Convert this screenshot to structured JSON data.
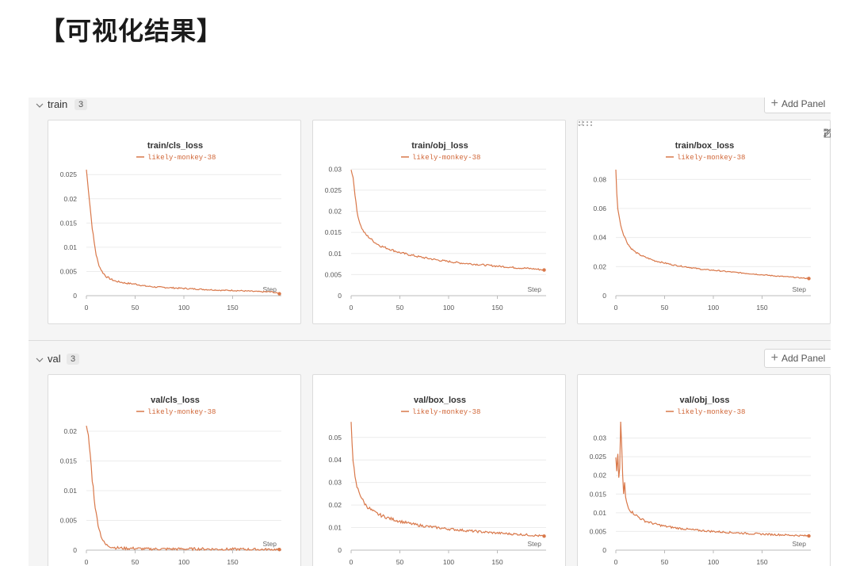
{
  "heading": "【可视化结果】",
  "theme": {
    "line_color": "#d9784a",
    "grid_color": "#ececec"
  },
  "legend_label": "likely-monkey-38",
  "step_label": "Step",
  "sections": [
    {
      "name": "train",
      "count": "3",
      "add_label": "Add Panel",
      "panels": [
        {
          "title": "train/cls_loss",
          "chart_data": {
            "type": "line",
            "title": "train/cls_loss",
            "xlabel": "Step",
            "xlim": [
              0,
              200
            ],
            "ylim": [
              0,
              0.027
            ],
            "xticks": [
              0,
              50,
              100,
              150
            ],
            "yticks": [
              0,
              0.005,
              0.01,
              0.015,
              0.02,
              0.025
            ],
            "ytick_labels": [
              "0",
              "0.005",
              "0.01",
              "0.015",
              "0.02",
              "0.025"
            ],
            "series": [
              {
                "name": "likely-monkey-38",
                "x": [
                  0,
                  2,
                  4,
                  6,
                  8,
                  10,
                  12,
                  14,
                  16,
                  20,
                  25,
                  30,
                  40,
                  50,
                  60,
                  70,
                  80,
                  90,
                  100,
                  110,
                  120,
                  130,
                  140,
                  150,
                  160,
                  170,
                  180,
                  190,
                  198
                ],
                "y": [
                  0.026,
                  0.022,
                  0.018,
                  0.014,
                  0.011,
                  0.0085,
                  0.0068,
                  0.0058,
                  0.005,
                  0.004,
                  0.0034,
                  0.003,
                  0.0026,
                  0.0024,
                  0.002,
                  0.0018,
                  0.0017,
                  0.0016,
                  0.0015,
                  0.0014,
                  0.0013,
                  0.0012,
                  0.0011,
                  0.0011,
                  0.001,
                  0.0009,
                  0.0008,
                  0.0008,
                  0.0004
                ],
                "noise": 0.0003
              }
            ]
          }
        },
        {
          "title": "train/obj_loss",
          "chart_data": {
            "type": "line",
            "title": "train/obj_loss",
            "xlabel": "Step",
            "xlim": [
              0,
              200
            ],
            "ylim": [
              0,
              0.031
            ],
            "xticks": [
              0,
              50,
              100,
              150
            ],
            "yticks": [
              0,
              0.005,
              0.01,
              0.015,
              0.02,
              0.025,
              0.03
            ],
            "ytick_labels": [
              "0",
              "0.005",
              "0.01",
              "0.015",
              "0.02",
              "0.025",
              "0.03"
            ],
            "series": [
              {
                "name": "likely-monkey-38",
                "x": [
                  0,
                  2,
                  4,
                  6,
                  8,
                  10,
                  12,
                  15,
                  20,
                  25,
                  30,
                  40,
                  50,
                  60,
                  70,
                  80,
                  90,
                  100,
                  110,
                  120,
                  130,
                  140,
                  150,
                  160,
                  170,
                  180,
                  190,
                  198
                ],
                "y": [
                  0.03,
                  0.028,
                  0.024,
                  0.02,
                  0.018,
                  0.0165,
                  0.0155,
                  0.0145,
                  0.0135,
                  0.0125,
                  0.0118,
                  0.011,
                  0.0102,
                  0.0097,
                  0.0092,
                  0.0088,
                  0.0084,
                  0.0081,
                  0.0078,
                  0.0076,
                  0.0074,
                  0.0072,
                  0.007,
                  0.0068,
                  0.0066,
                  0.0065,
                  0.0063,
                  0.0061
                ],
                "noise": 0.00025
              }
            ]
          }
        },
        {
          "title": "train/box_loss",
          "chart_data": {
            "type": "line",
            "title": "train/box_loss",
            "xlabel": "Step",
            "xlim": [
              0,
              200
            ],
            "ylim": [
              0,
              0.09
            ],
            "xticks": [
              0,
              50,
              100,
              150
            ],
            "yticks": [
              0,
              0.02,
              0.04,
              0.06,
              0.08
            ],
            "ytick_labels": [
              "0",
              "0.02",
              "0.04",
              "0.06",
              "0.08"
            ],
            "series": [
              {
                "name": "likely-monkey-38",
                "x": [
                  0,
                  1,
                  2,
                  4,
                  6,
                  8,
                  10,
                  12,
                  15,
                  20,
                  25,
                  30,
                  40,
                  50,
                  60,
                  70,
                  80,
                  90,
                  100,
                  120,
                  140,
                  160,
                  180,
                  198
                ],
                "y": [
                  0.087,
                  0.07,
                  0.06,
                  0.052,
                  0.046,
                  0.042,
                  0.039,
                  0.036,
                  0.033,
                  0.03,
                  0.028,
                  0.0265,
                  0.024,
                  0.0225,
                  0.021,
                  0.02,
                  0.019,
                  0.018,
                  0.0175,
                  0.0162,
                  0.015,
                  0.0138,
                  0.0128,
                  0.0118
                ],
                "noise": 0.0005
              }
            ]
          }
        }
      ]
    },
    {
      "name": "val",
      "count": "3",
      "add_label": "Add Panel",
      "panels": [
        {
          "title": "val/cls_loss",
          "chart_data": {
            "type": "line",
            "title": "val/cls_loss",
            "xlabel": "Step",
            "xlim": [
              0,
              200
            ],
            "ylim": [
              0,
              0.022
            ],
            "xticks": [
              0,
              50,
              100,
              150
            ],
            "yticks": [
              0,
              0.005,
              0.01,
              0.015,
              0.02
            ],
            "ytick_labels": [
              "0",
              "0.005",
              "0.01",
              "0.015",
              "0.02"
            ],
            "series": [
              {
                "name": "likely-monkey-38",
                "x": [
                  0,
                  2,
                  4,
                  6,
                  8,
                  10,
                  12,
                  14,
                  16,
                  18,
                  20,
                  25,
                  30,
                  40,
                  50,
                  60,
                  80,
                  100,
                  120,
                  140,
                  160,
                  180,
                  198
                ],
                "y": [
                  0.0205,
                  0.019,
                  0.016,
                  0.012,
                  0.009,
                  0.006,
                  0.0045,
                  0.003,
                  0.002,
                  0.0013,
                  0.0009,
                  0.0006,
                  0.0004,
                  0.0003,
                  0.0003,
                  0.0002,
                  0.0002,
                  0.0002,
                  0.0002,
                  0.00015,
                  0.00015,
                  0.0001,
                  0.0001
                ],
                "noise": 0.0006
              }
            ]
          }
        },
        {
          "title": "val/box_loss",
          "chart_data": {
            "type": "line",
            "title": "val/box_loss",
            "xlabel": "Step",
            "xlim": [
              0,
              200
            ],
            "ylim": [
              0,
              0.058
            ],
            "xticks": [
              0,
              50,
              100,
              150
            ],
            "yticks": [
              0,
              0.01,
              0.02,
              0.03,
              0.04,
              0.05
            ],
            "ytick_labels": [
              "0",
              "0.01",
              "0.02",
              "0.03",
              "0.04",
              "0.05"
            ],
            "series": [
              {
                "name": "likely-monkey-38",
                "x": [
                  0,
                  1,
                  2,
                  4,
                  6,
                  8,
                  10,
                  12,
                  15,
                  20,
                  25,
                  30,
                  40,
                  50,
                  60,
                  70,
                  80,
                  90,
                  100,
                  120,
                  140,
                  160,
                  180,
                  198
                ],
                "y": [
                  0.057,
                  0.048,
                  0.04,
                  0.032,
                  0.028,
                  0.026,
                  0.024,
                  0.022,
                  0.02,
                  0.018,
                  0.0165,
                  0.0155,
                  0.014,
                  0.0128,
                  0.0118,
                  0.011,
                  0.0104,
                  0.0099,
                  0.0094,
                  0.0086,
                  0.0079,
                  0.0073,
                  0.0068,
                  0.0062
                ],
                "noise": 0.0008
              }
            ]
          }
        },
        {
          "title": "val/obj_loss",
          "chart_data": {
            "type": "line",
            "title": "val/obj_loss",
            "xlabel": "Step",
            "xlim": [
              0,
              200
            ],
            "ylim": [
              0,
              0.035
            ],
            "xticks": [
              0,
              50,
              100,
              150
            ],
            "yticks": [
              0,
              0.005,
              0.01,
              0.015,
              0.02,
              0.025,
              0.03
            ],
            "ytick_labels": [
              "0",
              "0.005",
              "0.01",
              "0.015",
              "0.02",
              "0.025",
              "0.03"
            ],
            "series": [
              {
                "name": "likely-monkey-38",
                "x": [
                  0,
                  1,
                  2,
                  3,
                  4,
                  5,
                  6,
                  7,
                  8,
                  9,
                  10,
                  12,
                  15,
                  20,
                  25,
                  30,
                  40,
                  50,
                  60,
                  80,
                  100,
                  120,
                  140,
                  160,
                  180,
                  198
                ],
                "y": [
                  0.025,
                  0.021,
                  0.026,
                  0.019,
                  0.022,
                  0.034,
                  0.028,
                  0.02,
                  0.015,
                  0.018,
                  0.014,
                  0.012,
                  0.0105,
                  0.0095,
                  0.0085,
                  0.0078,
                  0.007,
                  0.0064,
                  0.006,
                  0.0054,
                  0.005,
                  0.0047,
                  0.0044,
                  0.0042,
                  0.004,
                  0.0038
                ],
                "noise": 0.0004
              }
            ]
          }
        }
      ]
    }
  ]
}
